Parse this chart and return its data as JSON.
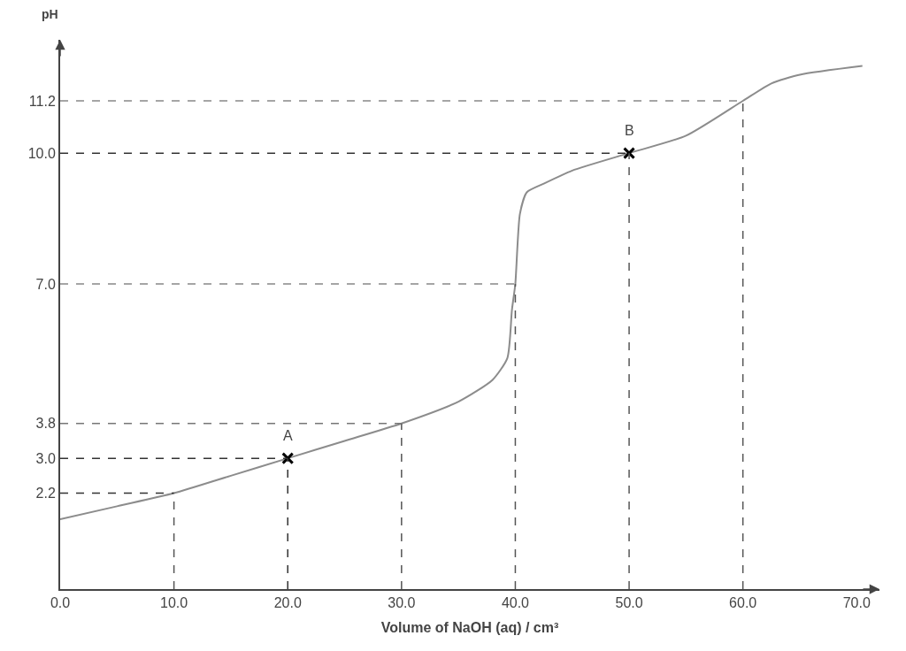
{
  "chart_data": {
    "type": "line",
    "xlabel": "Volume of NaOH (aq) / cm³",
    "ylabel": "pH",
    "series": [
      {
        "color": "#8c8c8c",
        "x": [
          0,
          5,
          10,
          15,
          20,
          25,
          30,
          35,
          38,
          39.3,
          39.7,
          40,
          40.4,
          41,
          42.5,
          45,
          50,
          55,
          60,
          62.5,
          65,
          70.5
        ],
        "values": [
          1.6,
          1.9,
          2.2,
          2.6,
          3.0,
          3.4,
          3.8,
          4.3,
          4.8,
          5.3,
          6.4,
          7.0,
          8.6,
          9.1,
          9.3,
          9.6,
          10.0,
          10.4,
          11.2,
          11.6,
          11.8,
          12.0
        ]
      },
      {
        "type": "scatter",
        "color": "#000000",
        "marker": "cross",
        "x": [
          20,
          50
        ],
        "values": [
          3.0,
          10.0
        ]
      }
    ],
    "xlim": [
      0,
      72
    ],
    "xticks": [
      {
        "value": 0,
        "label": "0.0"
      },
      {
        "value": 10,
        "label": "10.0"
      },
      {
        "value": 20,
        "label": "20.0"
      },
      {
        "value": 30,
        "label": "30.0"
      },
      {
        "value": 40,
        "label": "40.0"
      },
      {
        "value": 50,
        "label": "50.0"
      },
      {
        "value": 60,
        "label": "60.0"
      },
      {
        "value": 70,
        "label": "70.0"
      }
    ],
    "ylim": [
      0,
      12.6
    ],
    "yticks": [
      {
        "value": 2.2,
        "label": "2.2"
      },
      {
        "value": 3.0,
        "label": "3.0"
      },
      {
        "value": 3.8,
        "label": "3.8"
      },
      {
        "value": 7.0,
        "label": "7.0"
      },
      {
        "value": 10.0,
        "label": "10.0"
      },
      {
        "value": 11.2,
        "label": "11.2"
      }
    ],
    "ref_lines": [
      {
        "axis": "x",
        "value": 10,
        "color": "#555555",
        "line_style": "dashed"
      },
      {
        "axis": "x",
        "value": 20,
        "color": "#333333",
        "line_style": "dashed"
      },
      {
        "axis": "x",
        "value": 30,
        "color": "#555555",
        "line_style": "dashed"
      },
      {
        "axis": "x",
        "value": 40,
        "color": "#555555",
        "line_style": "dashed"
      },
      {
        "axis": "x",
        "value": 50,
        "color": "#555555",
        "line_style": "dashed"
      },
      {
        "axis": "x",
        "value": 60,
        "color": "#555555",
        "line_style": "dashed"
      },
      {
        "axis": "y",
        "value": 2.2,
        "color": "#333333",
        "line_style": "dashed"
      },
      {
        "axis": "y",
        "value": 3.0,
        "color": "#333333",
        "line_style": "dashed"
      },
      {
        "axis": "y",
        "value": 3.8,
        "color": "#777777",
        "line_style": "dashed"
      },
      {
        "axis": "y",
        "value": 7.0,
        "color": "#888888",
        "line_style": "dashed"
      },
      {
        "axis": "y",
        "value": 10.0,
        "color": "#333333",
        "line_style": "dashed"
      },
      {
        "axis": "y",
        "value": 11.2,
        "color": "#888888",
        "line_style": "dashed"
      }
    ],
    "annotations": [
      {
        "text": "A",
        "x": 20,
        "y": 3.0
      },
      {
        "text": "B",
        "x": 50,
        "y": 10.0
      }
    ],
    "tick_labels": "xy"
  }
}
